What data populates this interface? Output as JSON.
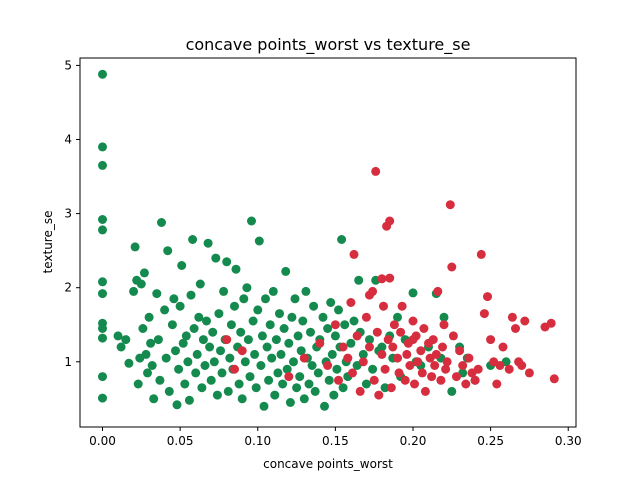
{
  "chart_data": {
    "type": "scatter",
    "title": "concave points_worst vs texture_se",
    "xlabel": "concave points_worst",
    "ylabel": "texture_se",
    "xlim": [
      -0.0145,
      0.305
    ],
    "ylim": [
      0.12,
      5.1
    ],
    "xticks": [
      "0.00",
      "0.05",
      "0.10",
      "0.15",
      "0.20",
      "0.25",
      "0.30"
    ],
    "yticks": [
      "1",
      "2",
      "3",
      "4",
      "5"
    ],
    "grid": false,
    "series": [
      {
        "color": "#158a4f",
        "points": [
          [
            0.0,
            4.88
          ],
          [
            0.0,
            3.9
          ],
          [
            0.0,
            3.65
          ],
          [
            0.0,
            2.92
          ],
          [
            0.0,
            2.78
          ],
          [
            0.0,
            2.08
          ],
          [
            0.0,
            1.92
          ],
          [
            0.0,
            1.52
          ],
          [
            0.0,
            1.45
          ],
          [
            0.0,
            1.32
          ],
          [
            0.0,
            0.8
          ],
          [
            0.0,
            0.51
          ],
          [
            0.01,
            1.35
          ],
          [
            0.012,
            1.2
          ],
          [
            0.015,
            1.3
          ],
          [
            0.017,
            0.98
          ],
          [
            0.02,
            1.95
          ],
          [
            0.021,
            2.55
          ],
          [
            0.022,
            2.1
          ],
          [
            0.023,
            0.7
          ],
          [
            0.024,
            1.05
          ],
          [
            0.025,
            2.05
          ],
          [
            0.026,
            1.45
          ],
          [
            0.027,
            2.2
          ],
          [
            0.028,
            1.1
          ],
          [
            0.029,
            0.85
          ],
          [
            0.03,
            1.6
          ],
          [
            0.031,
            1.25
          ],
          [
            0.032,
            0.95
          ],
          [
            0.033,
            0.5
          ],
          [
            0.035,
            1.92
          ],
          [
            0.036,
            1.3
          ],
          [
            0.037,
            0.75
          ],
          [
            0.038,
            2.88
          ],
          [
            0.04,
            1.7
          ],
          [
            0.041,
            1.05
          ],
          [
            0.042,
            2.5
          ],
          [
            0.043,
            0.6
          ],
          [
            0.045,
            1.5
          ],
          [
            0.046,
            1.85
          ],
          [
            0.047,
            1.15
          ],
          [
            0.048,
            0.42
          ],
          [
            0.049,
            0.9
          ],
          [
            0.05,
            1.75
          ],
          [
            0.051,
            2.3
          ],
          [
            0.052,
            1.25
          ],
          [
            0.053,
            0.7
          ],
          [
            0.054,
            1.35
          ],
          [
            0.055,
            1.0
          ],
          [
            0.056,
            0.48
          ],
          [
            0.057,
            1.9
          ],
          [
            0.058,
            2.65
          ],
          [
            0.059,
            1.45
          ],
          [
            0.06,
            0.85
          ],
          [
            0.061,
            1.1
          ],
          [
            0.062,
            1.6
          ],
          [
            0.063,
            2.05
          ],
          [
            0.064,
            0.65
          ],
          [
            0.065,
            1.3
          ],
          [
            0.066,
            0.95
          ],
          [
            0.067,
            1.55
          ],
          [
            0.068,
            2.6
          ],
          [
            0.069,
            1.2
          ],
          [
            0.07,
            0.75
          ],
          [
            0.071,
            1.4
          ],
          [
            0.072,
            1.0
          ],
          [
            0.073,
            2.4
          ],
          [
            0.074,
            0.55
          ],
          [
            0.075,
            1.65
          ],
          [
            0.076,
            1.15
          ],
          [
            0.077,
            0.85
          ],
          [
            0.078,
            1.95
          ],
          [
            0.079,
            1.3
          ],
          [
            0.08,
            2.35
          ],
          [
            0.081,
            0.6
          ],
          [
            0.082,
            1.05
          ],
          [
            0.083,
            1.5
          ],
          [
            0.084,
            0.9
          ],
          [
            0.085,
            1.75
          ],
          [
            0.086,
            2.25
          ],
          [
            0.087,
            1.2
          ],
          [
            0.088,
            0.7
          ],
          [
            0.089,
            1.4
          ],
          [
            0.09,
            0.5
          ],
          [
            0.091,
            1.85
          ],
          [
            0.092,
            1.0
          ],
          [
            0.093,
            2.0
          ],
          [
            0.094,
            1.3
          ],
          [
            0.095,
            0.8
          ],
          [
            0.096,
            2.9
          ],
          [
            0.097,
            1.55
          ],
          [
            0.098,
            1.1
          ],
          [
            0.099,
            0.65
          ],
          [
            0.1,
            1.7
          ],
          [
            0.101,
            2.63
          ],
          [
            0.102,
            0.95
          ],
          [
            0.103,
            1.35
          ],
          [
            0.104,
            0.4
          ],
          [
            0.105,
            1.85
          ],
          [
            0.106,
            1.2
          ],
          [
            0.107,
            0.75
          ],
          [
            0.108,
            1.5
          ],
          [
            0.109,
            1.05
          ],
          [
            0.11,
            1.95
          ],
          [
            0.111,
            0.55
          ],
          [
            0.112,
            1.3
          ],
          [
            0.113,
            0.85
          ],
          [
            0.114,
            1.65
          ],
          [
            0.115,
            1.1
          ],
          [
            0.116,
            0.7
          ],
          [
            0.117,
            1.45
          ],
          [
            0.118,
            2.22
          ],
          [
            0.119,
            0.9
          ],
          [
            0.12,
            1.25
          ],
          [
            0.121,
            0.45
          ],
          [
            0.122,
            1.6
          ],
          [
            0.123,
            1.0
          ],
          [
            0.124,
            1.85
          ],
          [
            0.125,
            0.65
          ],
          [
            0.126,
            1.35
          ],
          [
            0.127,
            0.8
          ],
          [
            0.128,
            1.15
          ],
          [
            0.129,
            1.55
          ],
          [
            0.13,
            0.5
          ],
          [
            0.131,
            1.95
          ],
          [
            0.132,
            1.05
          ],
          [
            0.133,
            0.7
          ],
          [
            0.134,
            1.4
          ],
          [
            0.135,
            0.95
          ],
          [
            0.136,
            1.75
          ],
          [
            0.137,
            0.6
          ],
          [
            0.138,
            1.2
          ],
          [
            0.139,
            0.85
          ],
          [
            0.14,
            1.3
          ],
          [
            0.142,
            1.6
          ],
          [
            0.143,
            0.4
          ],
          [
            0.144,
            1.0
          ],
          [
            0.145,
            1.45
          ],
          [
            0.146,
            0.75
          ],
          [
            0.147,
            1.8
          ],
          [
            0.148,
            1.1
          ],
          [
            0.149,
            0.55
          ],
          [
            0.15,
            1.35
          ],
          [
            0.151,
            0.9
          ],
          [
            0.152,
            1.7
          ],
          [
            0.153,
            1.2
          ],
          [
            0.154,
            2.65
          ],
          [
            0.155,
            0.65
          ],
          [
            0.156,
            1.5
          ],
          [
            0.157,
            1.0
          ],
          [
            0.158,
            0.8
          ],
          [
            0.16,
            1.25
          ],
          [
            0.162,
            1.55
          ],
          [
            0.164,
            0.95
          ],
          [
            0.165,
            2.1
          ],
          [
            0.166,
            1.4
          ],
          [
            0.168,
            1.1
          ],
          [
            0.17,
            0.7
          ],
          [
            0.172,
            1.3
          ],
          [
            0.174,
            0.9
          ],
          [
            0.176,
            2.1
          ],
          [
            0.178,
            1.15
          ],
          [
            0.18,
            1.2
          ],
          [
            0.182,
            0.65
          ],
          [
            0.185,
            1.35
          ],
          [
            0.187,
            1.05
          ],
          [
            0.19,
            1.6
          ],
          [
            0.192,
            0.8
          ],
          [
            0.195,
            1.3
          ],
          [
            0.2,
            1.93
          ],
          [
            0.202,
            1.0
          ],
          [
            0.205,
            0.95
          ],
          [
            0.21,
            1.2
          ],
          [
            0.215,
            1.92
          ],
          [
            0.218,
            1.05
          ],
          [
            0.22,
            1.6
          ],
          [
            0.225,
            0.6
          ],
          [
            0.23,
            1.2
          ],
          [
            0.232,
            0.85
          ],
          [
            0.235,
            1.05
          ],
          [
            0.24,
            0.75
          ],
          [
            0.25,
            0.95
          ],
          [
            0.26,
            1.0
          ]
        ]
      },
      {
        "color": "#d62e3e",
        "points": [
          [
            0.08,
            1.3
          ],
          [
            0.085,
            0.9
          ],
          [
            0.09,
            1.15
          ],
          [
            0.12,
            0.8
          ],
          [
            0.13,
            1.05
          ],
          [
            0.14,
            1.25
          ],
          [
            0.145,
            0.95
          ],
          [
            0.15,
            1.5
          ],
          [
            0.152,
            0.75
          ],
          [
            0.155,
            1.2
          ],
          [
            0.158,
            1.05
          ],
          [
            0.16,
            1.8
          ],
          [
            0.161,
            0.85
          ],
          [
            0.162,
            2.45
          ],
          [
            0.164,
            1.35
          ],
          [
            0.166,
            0.6
          ],
          [
            0.168,
            1.0
          ],
          [
            0.17,
            1.6
          ],
          [
            0.172,
            1.2
          ],
          [
            0.174,
            1.95
          ],
          [
            0.175,
            0.75
          ],
          [
            0.176,
            3.57
          ],
          [
            0.177,
            1.4
          ],
          [
            0.178,
            0.55
          ],
          [
            0.18,
            1.1
          ],
          [
            0.181,
            1.75
          ],
          [
            0.182,
            0.9
          ],
          [
            0.183,
            2.83
          ],
          [
            0.184,
            1.3
          ],
          [
            0.185,
            2.9
          ],
          [
            0.186,
            0.65
          ],
          [
            0.187,
            1.2
          ],
          [
            0.188,
            1.5
          ],
          [
            0.19,
            1.05
          ],
          [
            0.191,
            0.85
          ],
          [
            0.192,
            1.4
          ],
          [
            0.193,
            1.75
          ],
          [
            0.195,
            0.75
          ],
          [
            0.196,
            1.1
          ],
          [
            0.197,
            1.25
          ],
          [
            0.198,
            0.95
          ],
          [
            0.2,
            1.55
          ],
          [
            0.201,
            0.7
          ],
          [
            0.202,
            1.35
          ],
          [
            0.203,
            1.0
          ],
          [
            0.205,
            1.15
          ],
          [
            0.206,
            0.85
          ],
          [
            0.207,
            1.45
          ],
          [
            0.208,
            0.6
          ],
          [
            0.21,
            1.25
          ],
          [
            0.211,
            1.05
          ],
          [
            0.212,
            0.8
          ],
          [
            0.213,
            1.3
          ],
          [
            0.214,
            0.95
          ],
          [
            0.215,
            1.1
          ],
          [
            0.216,
            1.95
          ],
          [
            0.218,
            0.75
          ],
          [
            0.219,
            1.2
          ],
          [
            0.22,
            1.5
          ],
          [
            0.221,
            0.9
          ],
          [
            0.222,
            1.0
          ],
          [
            0.224,
            3.12
          ],
          [
            0.225,
            2.28
          ],
          [
            0.226,
            1.35
          ],
          [
            0.228,
            0.8
          ],
          [
            0.23,
            1.15
          ],
          [
            0.232,
            0.95
          ],
          [
            0.234,
            0.7
          ],
          [
            0.236,
            1.05
          ],
          [
            0.238,
            0.85
          ],
          [
            0.24,
            0.75
          ],
          [
            0.242,
            0.9
          ],
          [
            0.244,
            2.45
          ],
          [
            0.246,
            1.65
          ],
          [
            0.248,
            1.88
          ],
          [
            0.25,
            1.3
          ],
          [
            0.252,
            1.0
          ],
          [
            0.254,
            0.7
          ],
          [
            0.256,
            0.95
          ],
          [
            0.258,
            1.2
          ],
          [
            0.262,
            0.9
          ],
          [
            0.264,
            1.6
          ],
          [
            0.266,
            1.45
          ],
          [
            0.268,
            1.0
          ],
          [
            0.27,
            0.95
          ],
          [
            0.272,
            1.55
          ],
          [
            0.275,
            0.85
          ],
          [
            0.285,
            1.47
          ],
          [
            0.289,
            1.52
          ],
          [
            0.291,
            0.77
          ],
          [
            0.172,
            1.9
          ],
          [
            0.18,
            2.12
          ],
          [
            0.185,
            2.13
          ],
          [
            0.2,
            1.3
          ]
        ]
      }
    ]
  }
}
